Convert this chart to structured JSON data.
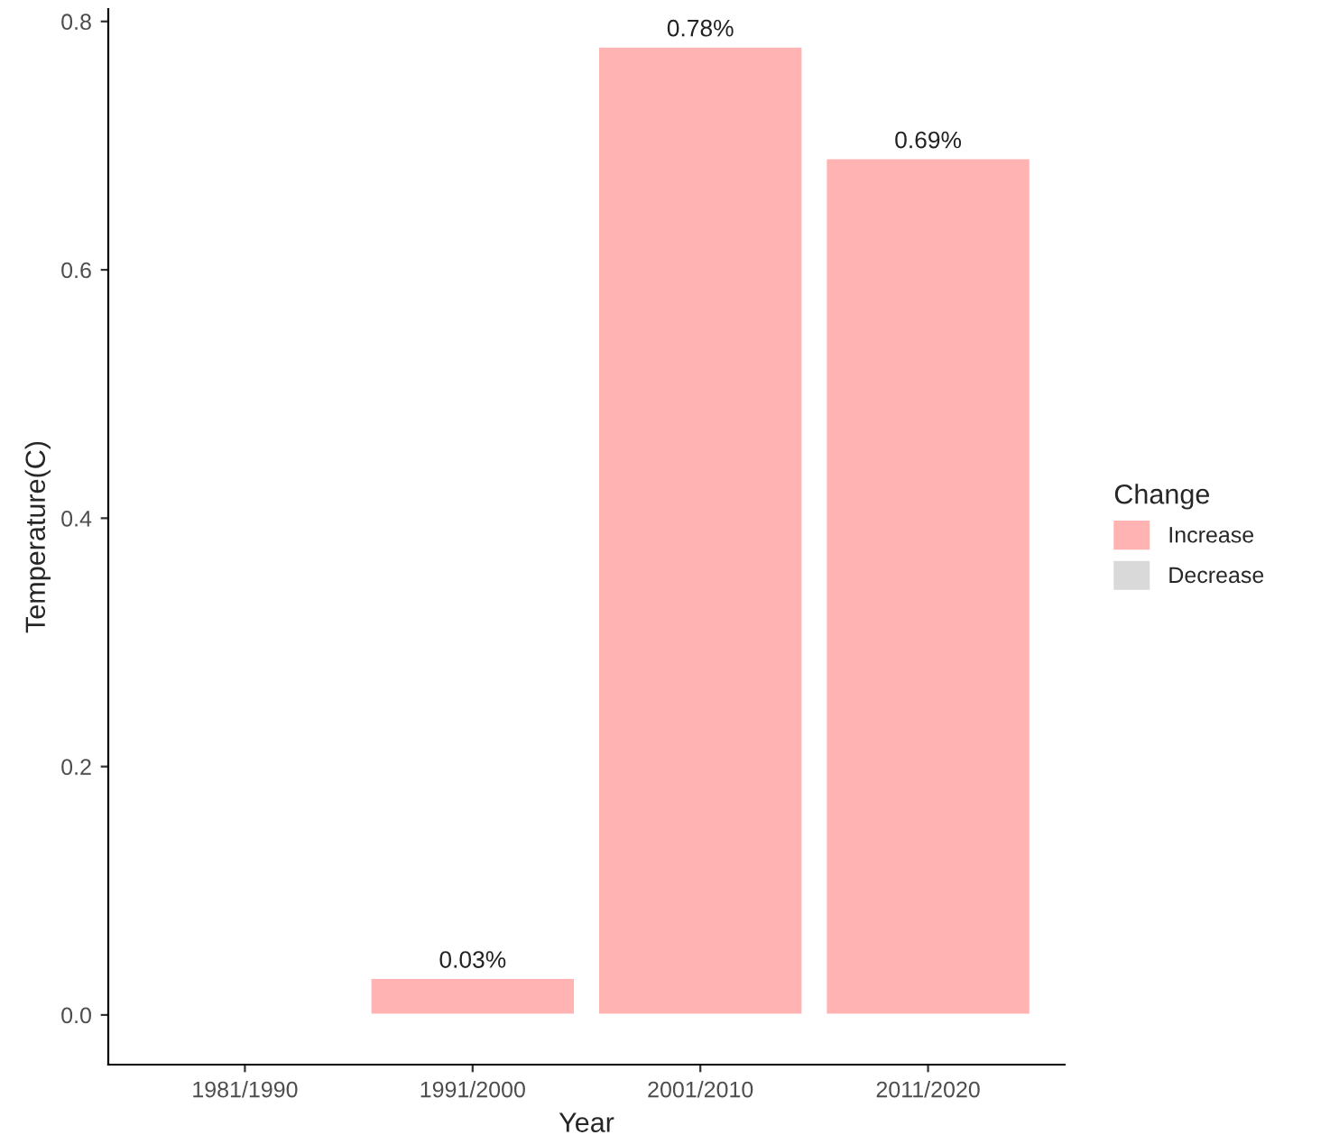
{
  "chart_data": {
    "type": "bar",
    "xlabel": "Year",
    "ylabel": "Temperature(C)",
    "legend_title": "Change",
    "categories": [
      "1981/1990",
      "1991/2000",
      "2001/2010",
      "2011/2020"
    ],
    "series": [
      {
        "name": "Increase",
        "color": "#ffb3b3",
        "values": [
          null,
          0.03,
          0.78,
          0.69
        ],
        "value_labels": [
          null,
          "0.03%",
          "0.78%",
          "0.69%"
        ]
      },
      {
        "name": "Decrease",
        "color": "#d9d9d9",
        "values": [
          null,
          null,
          null,
          null
        ]
      }
    ],
    "stacked": true,
    "ylim": [
      -0.04,
      0.81
    ],
    "yticks": [
      {
        "value": 0,
        "label": "0.0"
      },
      0.2,
      0.4,
      0.6,
      0.8
    ],
    "grid": false,
    "legend": "right"
  }
}
